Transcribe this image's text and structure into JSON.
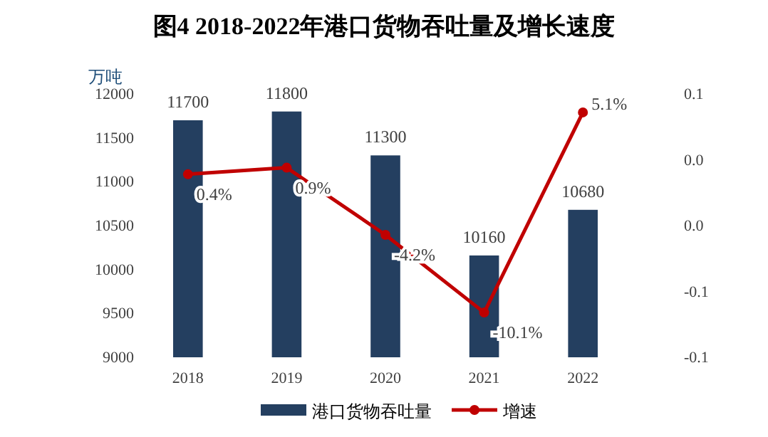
{
  "chart_data": {
    "type": "bar",
    "title": "图4  2018-2022年港口货物吞吐量及增长速度",
    "ylabel": "万吨",
    "categories": [
      "2018",
      "2019",
      "2020",
      "2021",
      "2022"
    ],
    "series": [
      {
        "name": "港口货物吞吐量",
        "color": "#243f60",
        "values": [
          11700,
          11800,
          11300,
          10160,
          10680
        ]
      },
      {
        "name": "增速",
        "type": "line",
        "axis": "y2",
        "color": "#c00000",
        "values": [
          0.004,
          0.009,
          -0.042,
          -0.101,
          0.051
        ],
        "value_labels": [
          "0.4%",
          "0.9%",
          "-4.2%",
          "-10.1%",
          "5.1%"
        ]
      }
    ],
    "data_labels": true,
    "marker": "circle",
    "legend": "bottom",
    "grid": false,
    "ylim": [
      9000,
      12000
    ],
    "yticks": [
      9000,
      9500,
      10000,
      10500,
      11000,
      11500,
      12000
    ],
    "y2lim": [
      -0.135,
      0.065
    ],
    "y2ticks": [
      {
        "value": -0.135,
        "label": "-0.1"
      },
      {
        "value": -0.085,
        "label": "-0.1"
      },
      {
        "value": -0.035,
        "label": "0.0"
      },
      {
        "value": 0.015,
        "label": "0.0"
      },
      {
        "value": 0.065,
        "label": "0.1"
      }
    ]
  }
}
